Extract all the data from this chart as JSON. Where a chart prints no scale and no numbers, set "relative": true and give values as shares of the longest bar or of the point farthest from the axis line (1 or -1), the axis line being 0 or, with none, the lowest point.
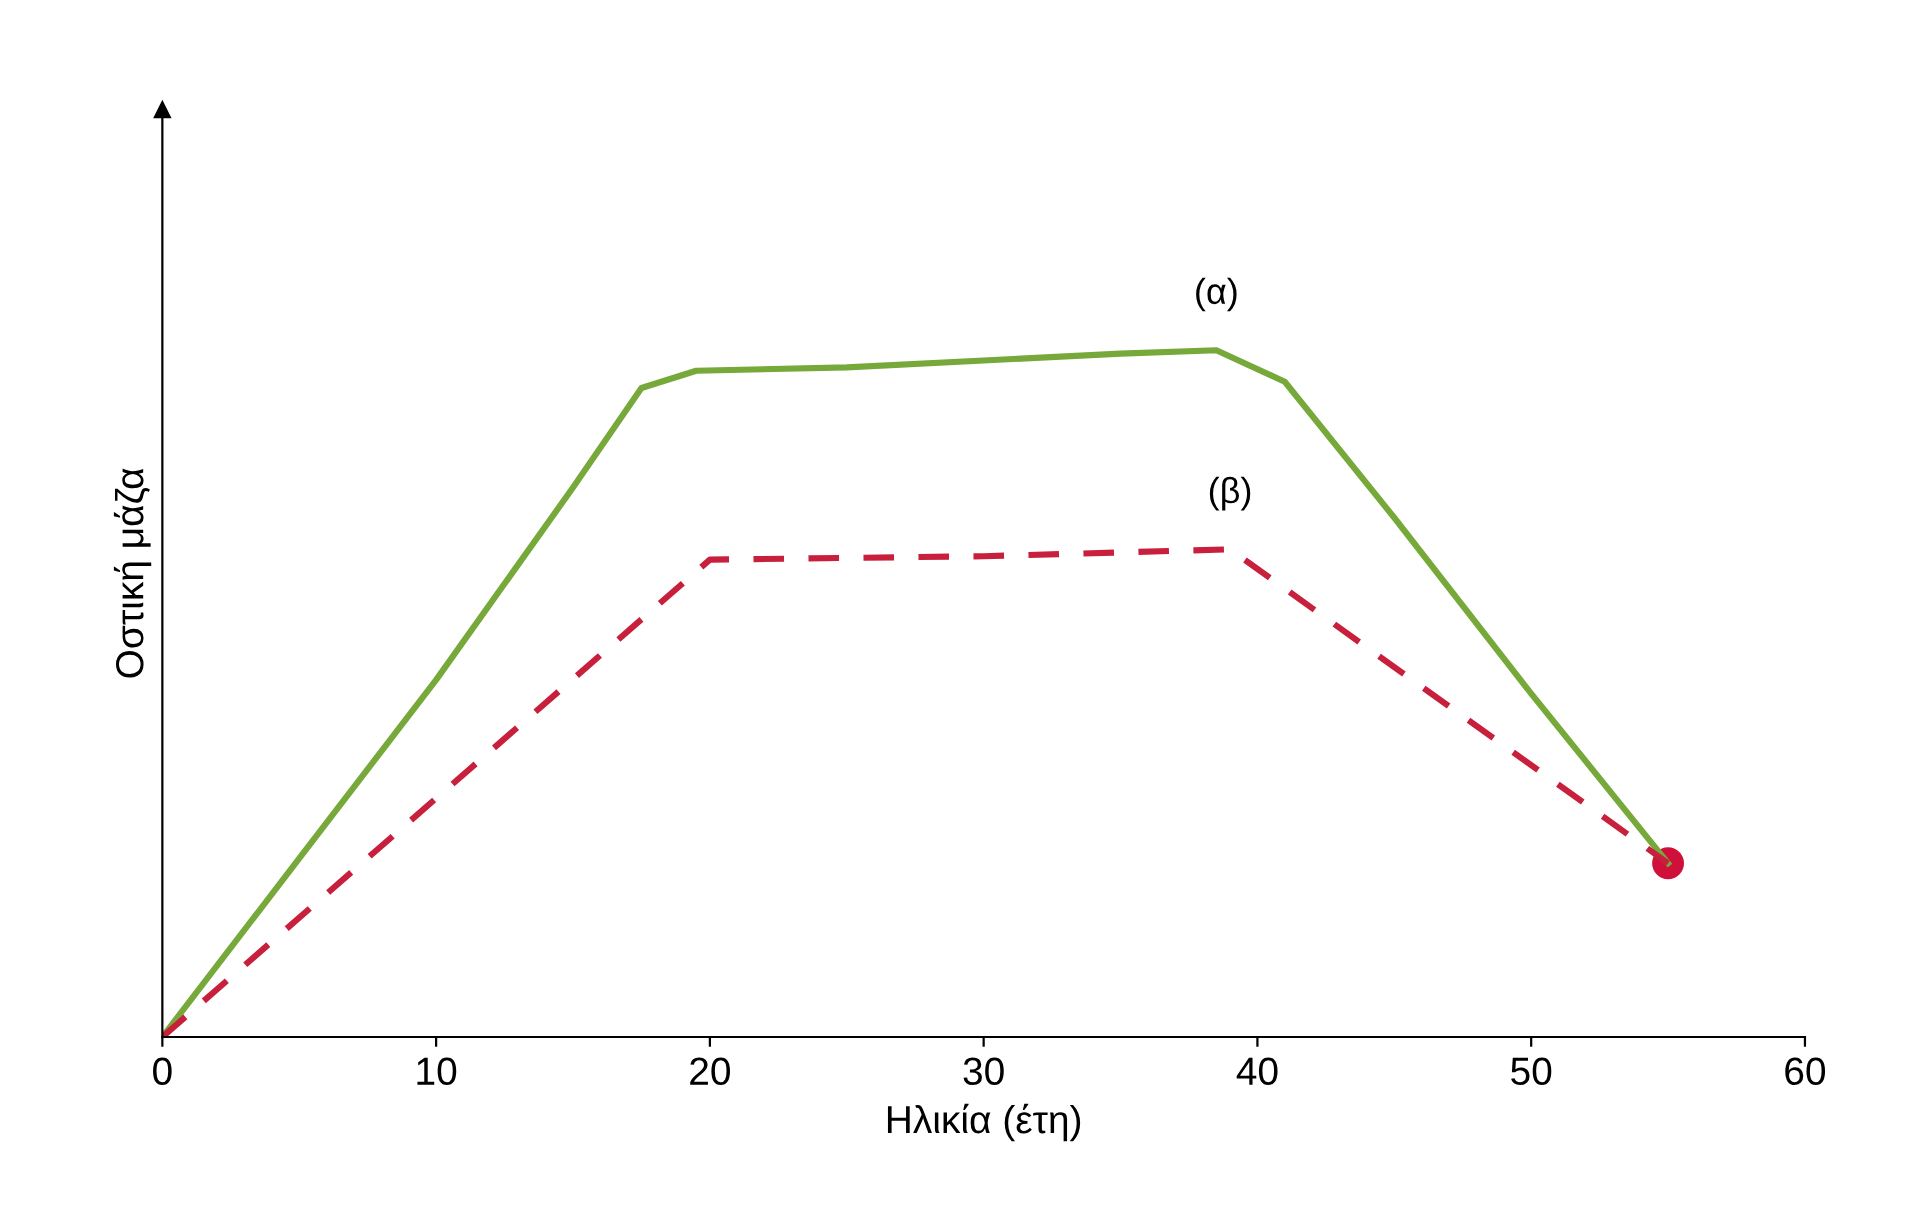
{
  "chart_data": {
    "type": "line",
    "relative": true,
    "xlabel": "Ηλικία (έτη)",
    "ylabel": "Οστική μάζα",
    "xlim": [
      0,
      60
    ],
    "xticks": [
      0,
      10,
      20,
      30,
      40,
      50,
      60
    ],
    "grid": false,
    "legend": false,
    "marker": "none",
    "series": [
      {
        "name": "(α)",
        "color": "#76a83a",
        "line_style": "solid",
        "x": [
          0,
          5,
          10,
          15,
          17.5,
          19.5,
          25,
          30,
          35,
          38.5,
          41,
          45,
          50,
          55
        ],
        "values": [
          0,
          0.26,
          0.52,
          0.8,
          0.945,
          0.97,
          0.975,
          0.985,
          0.995,
          1,
          0.954,
          0.756,
          0.5,
          0.253
        ]
      },
      {
        "name": "(β)",
        "color": "#c8203c",
        "line_style": "dashed",
        "x": [
          0,
          20,
          30,
          39,
          55
        ],
        "values": [
          0,
          0.695,
          0.7,
          0.71,
          0.253
        ]
      },
      {
        "type": "scatter",
        "color": "#d0103a",
        "marker": "circle",
        "x": [
          55
        ],
        "values": [
          0.253
        ]
      }
    ]
  }
}
